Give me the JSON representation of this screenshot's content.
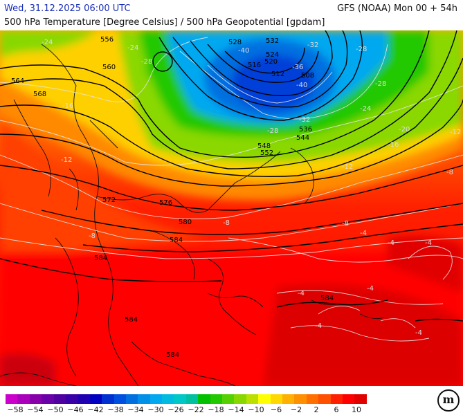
{
  "header": {
    "valid_time": "Wed, 31.12.2025 06:00 UTC",
    "model": "GFS (NOAA) Mon 00 + 54h",
    "parameter": "500 hPa Temperature [Degree Celsius] / 500 hPa Geopotential [gpdam]"
  },
  "map": {
    "geopotential_labels": [
      "556",
      "560",
      "564",
      "568",
      "572",
      "576",
      "580",
      "584",
      "528",
      "532",
      "524",
      "520",
      "516",
      "512",
      "508",
      "536",
      "544",
      "548",
      "552",
      "584",
      "584",
      "584",
      "584"
    ],
    "temperature_labels": [
      "-24",
      "-28",
      "-40",
      "-36",
      "-32",
      "-40",
      "-28",
      "-24",
      "-32",
      "-28",
      "-12",
      "-16",
      "-20",
      "-8",
      "-8",
      "-12",
      "-8",
      "-4",
      "-4",
      "-4",
      "-4",
      "-4",
      "-4",
      "-4",
      "-8",
      "-12",
      "-16",
      "-24",
      "-28"
    ],
    "colors": {
      "land_border": "#111111",
      "isotherm": "#e6e6e6",
      "geopotential": "#000000"
    }
  },
  "colorbar": {
    "ticks": [
      "−58",
      "−54",
      "−50",
      "−46",
      "−42",
      "−38",
      "−34",
      "−30",
      "−26",
      "−22",
      "−18",
      "−14",
      "−10",
      "−6",
      "−2",
      "2",
      "6",
      "10"
    ],
    "colors": [
      "#cc00cc",
      "#aa00bb",
      "#8800aa",
      "#6a00a8",
      "#5000a0",
      "#3a00a8",
      "#2000b0",
      "#0000c0",
      "#0030d0",
      "#0050e0",
      "#0070e0",
      "#0090e8",
      "#00a8f0",
      "#00bbe0",
      "#00c8c8",
      "#00c0a0",
      "#00c000",
      "#22c800",
      "#55d000",
      "#88d800",
      "#bbe000",
      "#ffff00",
      "#ffd800",
      "#ffb000",
      "#ff9000",
      "#ff7000",
      "#ff5000",
      "#ff2000",
      "#ff0000",
      "#e00000",
      "#c00000",
      "#a00020",
      "#900040",
      "#a00060",
      "#c00080",
      "#e000a0",
      "#ff00c0",
      "#ff00ff",
      "#ff40ff",
      "#ff80ff"
    ],
    "logo": "m"
  }
}
